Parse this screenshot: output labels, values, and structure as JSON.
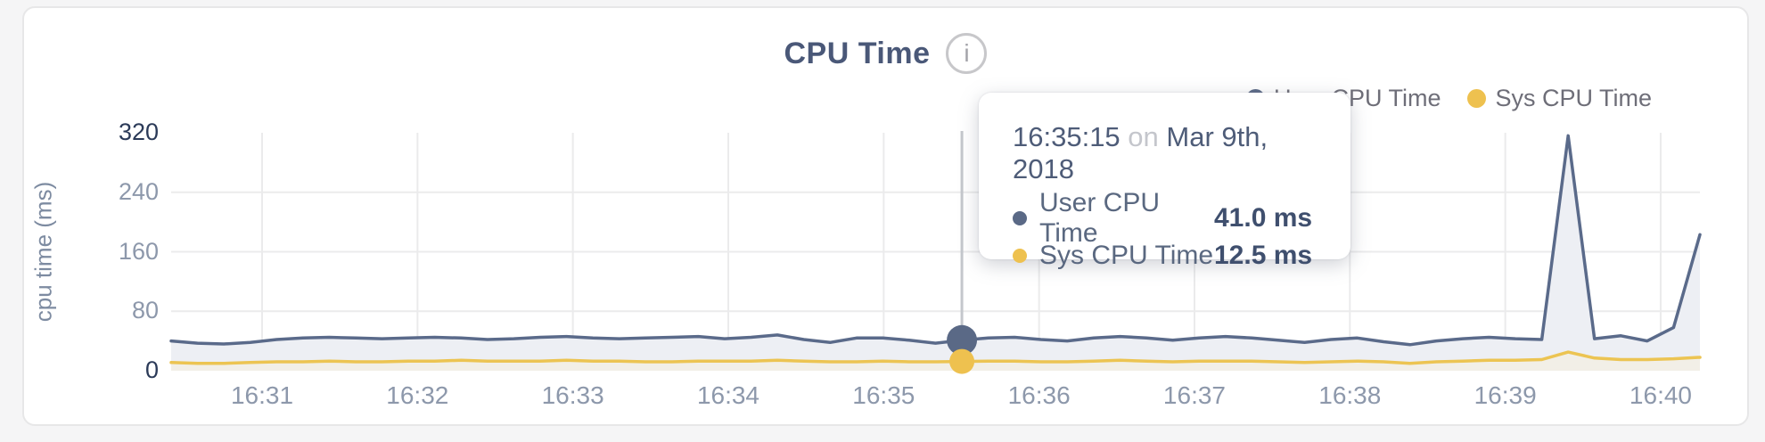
{
  "card": {
    "title": "CPU Time",
    "info_glyph": "i"
  },
  "legend": [
    {
      "label": "User CPU Time",
      "color": "#5a6986"
    },
    {
      "label": "Sys CPU Time",
      "color": "#eec14f"
    }
  ],
  "tooltip": {
    "time": "16:35:15",
    "preposition": "on",
    "date": "Mar 9th, 2018",
    "rows": [
      {
        "label": "User CPU Time",
        "value": "41.0 ms",
        "color": "#5a6986"
      },
      {
        "label": "Sys CPU Time",
        "value": "12.5 ms",
        "color": "#eec14f"
      }
    ]
  },
  "chart_data": {
    "type": "area",
    "title": "CPU Time",
    "xlabel": "",
    "ylabel": "cpu time (ms)",
    "ylim": [
      0,
      320
    ],
    "y_ticks": [
      0,
      80,
      160,
      240,
      320
    ],
    "x_ticks": [
      "16:31",
      "16:32",
      "16:33",
      "16:34",
      "16:35",
      "16:36",
      "16:37",
      "16:38",
      "16:39",
      "16:40"
    ],
    "grid": true,
    "legend_position": "top-right",
    "sample_interval_seconds": 10,
    "hover_index": 30,
    "hover_time": "16:35:15",
    "series": [
      {
        "name": "User CPU Time",
        "color": "#5a6a8a",
        "fill": "#edeff4",
        "unit": "ms",
        "values": [
          40,
          37,
          36,
          38,
          42,
          44,
          45,
          44,
          43,
          44,
          45,
          44,
          42,
          43,
          45,
          46,
          44,
          43,
          44,
          45,
          46,
          43,
          45,
          48,
          42,
          38,
          44,
          44,
          41,
          37,
          41,
          44,
          45,
          42,
          40,
          44,
          46,
          44,
          41,
          44,
          46,
          44,
          41,
          38,
          42,
          44,
          39,
          35,
          40,
          43,
          45,
          43,
          42,
          316,
          43,
          47,
          40,
          58,
          183
        ]
      },
      {
        "name": "Sys CPU Time",
        "color": "#ecc452",
        "fill": "#f2efe7",
        "unit": "ms",
        "values": [
          11,
          10,
          10,
          11,
          12,
          12,
          13,
          12,
          12,
          13,
          13,
          14,
          13,
          13,
          13,
          14,
          13,
          13,
          12,
          12,
          13,
          13,
          13,
          14,
          13,
          12,
          12,
          13,
          12,
          12,
          12.5,
          13,
          13,
          12,
          12,
          13,
          14,
          13,
          12,
          13,
          13,
          13,
          12,
          11,
          12,
          13,
          12,
          10,
          12,
          13,
          14,
          14,
          15,
          25,
          17,
          15,
          15,
          16,
          18
        ]
      }
    ]
  }
}
